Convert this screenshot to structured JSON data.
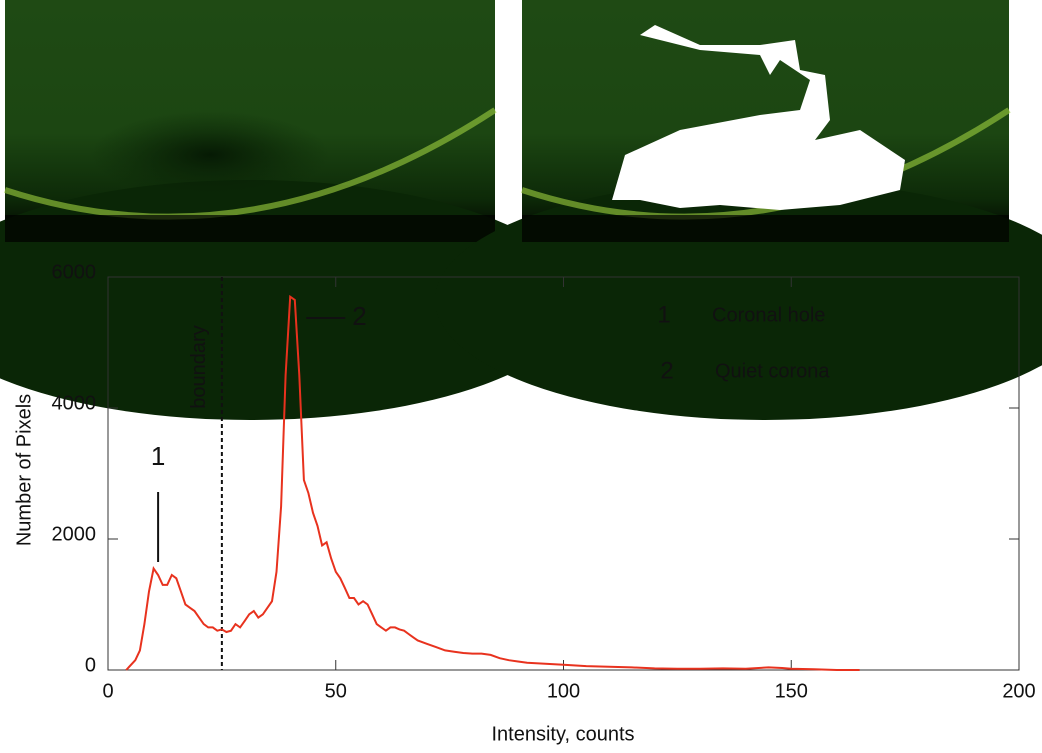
{
  "chart_data": {
    "type": "line",
    "x": [
      4,
      6,
      7,
      8,
      9,
      10,
      11,
      12,
      13,
      14,
      15,
      16,
      17,
      18,
      19,
      20,
      21,
      22,
      23,
      24,
      25,
      26,
      27,
      28,
      29,
      30,
      31,
      32,
      33,
      34,
      35,
      36,
      37,
      38,
      39,
      40,
      41,
      42,
      43,
      44,
      45,
      46,
      47,
      48,
      49,
      50,
      51,
      52,
      53,
      54,
      55,
      56,
      57,
      58,
      59,
      60,
      61,
      62,
      63,
      64,
      65,
      66,
      67,
      68,
      70,
      72,
      74,
      76,
      78,
      80,
      82,
      84,
      86,
      88,
      90,
      92,
      95,
      100,
      105,
      110,
      115,
      120,
      125,
      130,
      135,
      140,
      145,
      148,
      150,
      155,
      160,
      165
    ],
    "values": [
      0,
      150,
      300,
      700,
      1200,
      1550,
      1450,
      1300,
      1300,
      1450,
      1400,
      1200,
      1000,
      950,
      900,
      800,
      700,
      650,
      650,
      600,
      620,
      580,
      600,
      700,
      650,
      750,
      850,
      900,
      800,
      850,
      950,
      1050,
      1500,
      2500,
      4500,
      5700,
      5650,
      4500,
      2900,
      2700,
      2400,
      2200,
      1900,
      1950,
      1700,
      1500,
      1400,
      1250,
      1100,
      1100,
      1000,
      1050,
      1000,
      850,
      700,
      650,
      600,
      650,
      650,
      620,
      600,
      550,
      500,
      450,
      400,
      350,
      300,
      280,
      260,
      250,
      250,
      230,
      180,
      150,
      130,
      110,
      100,
      80,
      60,
      50,
      40,
      25,
      20,
      20,
      25,
      20,
      40,
      30,
      20,
      10,
      0,
      0
    ],
    "color": "#e8321e",
    "xlabel": "Intensity, counts",
    "ylabel": "Number of Pixels",
    "xlim": [
      0,
      200
    ],
    "ylim": [
      0,
      6000
    ],
    "xticks": [
      0,
      50,
      100,
      150,
      200
    ],
    "yticks": [
      0,
      2000,
      4000,
      6000
    ],
    "boundary": {
      "x": 25,
      "label": "boundary"
    },
    "peak_labels": [
      {
        "x": 11,
        "text": "1"
      },
      {
        "x": 40,
        "text": "2"
      }
    ],
    "notes": [
      {
        "number": "1",
        "text": "Coronal hole"
      },
      {
        "number": "2",
        "text": "Quiet corona"
      }
    ]
  }
}
